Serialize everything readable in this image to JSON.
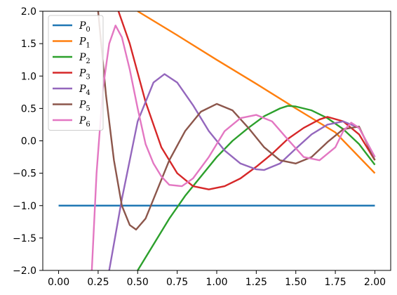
{
  "chart_data": {
    "type": "line",
    "title": "",
    "xlabel": "",
    "ylabel": "",
    "xlim": [
      -0.1,
      2.1
    ],
    "ylim": [
      -2.0,
      2.0
    ],
    "x_ticks": [
      0.0,
      0.25,
      0.5,
      0.75,
      1.0,
      1.25,
      1.5,
      1.75,
      2.0
    ],
    "x_tick_labels": [
      "0.00",
      "0.25",
      "0.50",
      "0.75",
      "1.00",
      "1.25",
      "1.50",
      "1.75",
      "2.00"
    ],
    "y_ticks": [
      -2.0,
      -1.5,
      -1.0,
      -0.5,
      0.0,
      0.5,
      1.0,
      1.5,
      2.0
    ],
    "y_tick_labels": [
      "−2.0",
      "−1.5",
      "−1.0",
      "−0.5",
      "0.0",
      "0.5",
      "1.0",
      "1.5",
      "2.0"
    ],
    "grid": false,
    "legend_position": "top-left",
    "series": [
      {
        "name": "P",
        "subscript": "0",
        "color": "#1f77b4",
        "x": [
          0.0,
          2.0
        ],
        "y": [
          -1.0,
          -1.0
        ]
      },
      {
        "name": "P",
        "subscript": "1",
        "color": "#ff7f0e",
        "x": [
          0.5,
          0.75,
          1.0,
          1.25,
          1.5,
          1.75,
          2.0
        ],
        "y": [
          2.0,
          1.63,
          1.25,
          0.88,
          0.5,
          0.13,
          -0.5
        ]
      },
      {
        "name": "P",
        "subscript": "2",
        "color": "#2ca02c",
        "x": [
          0.5,
          0.6,
          0.7,
          0.8,
          0.9,
          1.0,
          1.1,
          1.2,
          1.3,
          1.4,
          1.45,
          1.5,
          1.6,
          1.7,
          1.8,
          1.9,
          2.0
        ],
        "y": [
          -2.0,
          -1.6,
          -1.2,
          -0.85,
          -0.55,
          -0.25,
          0.0,
          0.2,
          0.38,
          0.5,
          0.54,
          0.53,
          0.47,
          0.35,
          0.18,
          -0.05,
          -0.37
        ]
      },
      {
        "name": "P",
        "subscript": "3",
        "color": "#d62728",
        "x": [
          0.25,
          0.35,
          0.45,
          0.55,
          0.65,
          0.75,
          0.85,
          0.95,
          1.05,
          1.15,
          1.25,
          1.35,
          1.45,
          1.55,
          1.65,
          1.7,
          1.8,
          1.9,
          2.0
        ],
        "y": [
          2.0,
          2.2,
          1.5,
          0.6,
          -0.1,
          -0.5,
          -0.7,
          -0.75,
          -0.7,
          -0.58,
          -0.4,
          -0.2,
          0.03,
          0.2,
          0.33,
          0.37,
          0.3,
          0.1,
          -0.3
        ]
      },
      {
        "name": "P",
        "subscript": "4",
        "color": "#9467bd",
        "x": [
          0.32,
          0.4,
          0.5,
          0.6,
          0.67,
          0.75,
          0.85,
          0.95,
          1.05,
          1.15,
          1.25,
          1.3,
          1.4,
          1.5,
          1.6,
          1.7,
          1.8,
          1.9,
          2.0
        ],
        "y": [
          -2.0,
          -0.9,
          0.3,
          0.9,
          1.03,
          0.9,
          0.55,
          0.15,
          -0.15,
          -0.35,
          -0.44,
          -0.45,
          -0.35,
          -0.12,
          0.1,
          0.25,
          0.3,
          0.2,
          -0.25
        ]
      },
      {
        "name": "P",
        "subscript": "5",
        "color": "#8c564b",
        "x": [
          0.25,
          0.3,
          0.35,
          0.4,
          0.45,
          0.49,
          0.55,
          0.6,
          0.7,
          0.8,
          0.9,
          1.0,
          1.1,
          1.2,
          1.3,
          1.4,
          1.5,
          1.6,
          1.7,
          1.8,
          1.9,
          2.0
        ],
        "y": [
          2.0,
          0.7,
          -0.3,
          -1.0,
          -1.3,
          -1.37,
          -1.2,
          -0.9,
          -0.3,
          0.15,
          0.45,
          0.57,
          0.47,
          0.2,
          -0.1,
          -0.3,
          -0.35,
          -0.25,
          -0.02,
          0.18,
          0.22,
          -0.3
        ]
      },
      {
        "name": "P",
        "subscript": "6",
        "color": "#e377c2",
        "x": [
          0.21,
          0.24,
          0.28,
          0.32,
          0.36,
          0.4,
          0.45,
          0.5,
          0.55,
          0.6,
          0.65,
          0.7,
          0.78,
          0.85,
          0.95,
          1.05,
          1.15,
          1.25,
          1.35,
          1.45,
          1.55,
          1.65,
          1.75,
          1.8,
          1.85,
          1.9,
          2.0
        ],
        "y": [
          -2.0,
          -0.5,
          0.8,
          1.5,
          1.78,
          1.6,
          1.1,
          0.5,
          -0.05,
          -0.35,
          -0.55,
          -0.68,
          -0.7,
          -0.58,
          -0.25,
          0.15,
          0.35,
          0.4,
          0.3,
          0.02,
          -0.25,
          -0.3,
          -0.1,
          0.15,
          0.28,
          0.2,
          -0.25
        ]
      }
    ]
  }
}
